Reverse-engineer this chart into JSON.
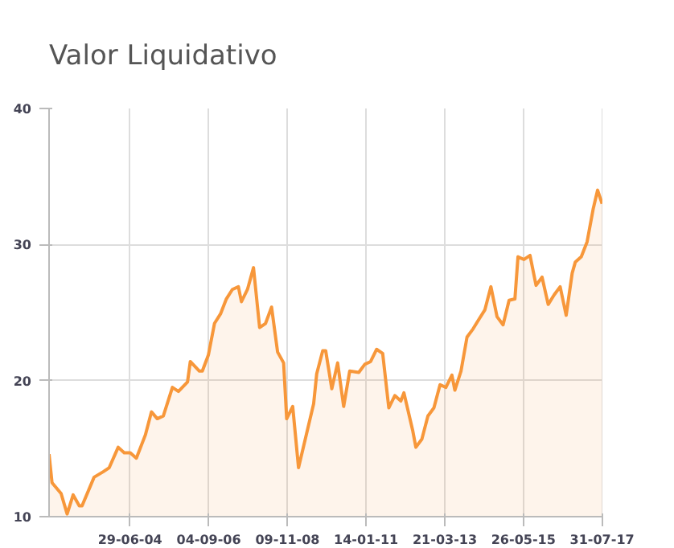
{
  "chart_data": {
    "type": "area",
    "title": "Valor Liquidativo",
    "color": "#f7973a",
    "grid": true,
    "x": [
      "2002-04",
      "2002-05",
      "2002-08",
      "2002-10",
      "2002-12",
      "2003-02",
      "2003-03",
      "2003-07",
      "2003-10",
      "2003-12",
      "2004-03",
      "2004-05",
      "2004-07",
      "2004-09",
      "2004-12",
      "2005-02",
      "2005-04",
      "2005-06",
      "2005-09",
      "2005-11",
      "2006-02",
      "2006-03",
      "2006-06",
      "2006-07",
      "2006-09",
      "2006-11",
      "2007-01",
      "2007-03",
      "2007-05",
      "2007-07",
      "2007-08",
      "2007-10",
      "2007-12",
      "2008-02",
      "2008-04",
      "2008-06",
      "2008-08",
      "2008-10",
      "2008-11",
      "2009-01",
      "2009-03",
      "2009-08",
      "2009-09",
      "2009-11",
      "2009-12",
      "2010-02",
      "2010-04",
      "2010-06",
      "2010-08",
      "2010-11",
      "2011-01",
      "2011-03",
      "2011-05",
      "2011-07",
      "2011-09",
      "2011-11",
      "2012-01",
      "2012-02",
      "2012-05",
      "2012-06",
      "2012-08",
      "2012-10",
      "2012-12",
      "2013-02",
      "2013-04",
      "2013-06",
      "2013-07",
      "2013-09",
      "2013-11",
      "2014-01",
      "2014-03",
      "2014-05",
      "2014-07",
      "2014-09",
      "2014-11",
      "2015-01",
      "2015-03",
      "2015-04",
      "2015-06",
      "2015-08",
      "2015-10",
      "2015-12",
      "2016-02",
      "2016-04",
      "2016-06",
      "2016-08",
      "2016-10",
      "2016-11",
      "2017-01",
      "2017-03",
      "2017-05",
      "2017-06-15",
      "2017-07-31"
    ],
    "values": [
      14.6,
      12.5,
      11.7,
      10.2,
      11.6,
      10.8,
      10.8,
      12.9,
      13.3,
      13.6,
      15.1,
      14.7,
      14.7,
      14.3,
      16.0,
      17.7,
      17.2,
      17.4,
      19.5,
      19.2,
      19.9,
      21.4,
      20.7,
      20.7,
      21.9,
      24.2,
      24.9,
      26.0,
      26.7,
      26.9,
      25.8,
      26.7,
      28.3,
      23.9,
      24.2,
      25.4,
      22.1,
      21.3,
      17.2,
      18.1,
      13.6,
      18.3,
      20.5,
      22.2,
      22.2,
      19.4,
      21.3,
      18.1,
      20.7,
      20.6,
      21.2,
      21.4,
      22.3,
      22.0,
      18.0,
      18.9,
      18.5,
      19.1,
      16.3,
      15.1,
      15.7,
      17.4,
      18.0,
      19.7,
      19.5,
      20.4,
      19.3,
      20.7,
      23.2,
      23.8,
      24.5,
      25.2,
      26.9,
      24.7,
      24.1,
      25.9,
      26.0,
      29.1,
      28.9,
      29.2,
      27.0,
      27.6,
      25.6,
      26.3,
      26.9,
      24.8,
      27.9,
      28.7,
      29.1,
      30.2,
      32.6,
      34.0,
      33.0
    ],
    "xlim": [
      "2002-04-01",
      "2017-08-03"
    ],
    "xticks": [
      {
        "value": "2004-06-29",
        "label": "29-06-04"
      },
      {
        "value": "2006-09-04",
        "label": "04-09-06"
      },
      {
        "value": "2008-11-09",
        "label": "09-11-08"
      },
      {
        "value": "2011-01-14",
        "label": "14-01-11"
      },
      {
        "value": "2013-03-21",
        "label": "21-03-13"
      },
      {
        "value": "2015-05-26",
        "label": "26-05-15"
      },
      {
        "value": "2017-07-31",
        "label": "31-07-17"
      }
    ],
    "ylim": [
      10,
      40
    ],
    "yticks": [
      10,
      20,
      30,
      40
    ]
  }
}
